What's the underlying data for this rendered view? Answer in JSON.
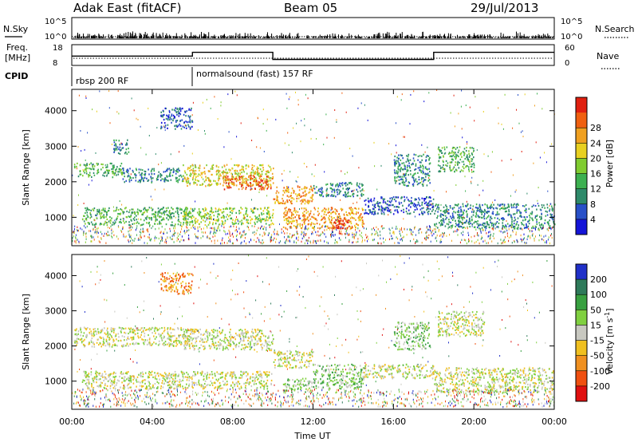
{
  "header": {
    "station": "Adak East (fitACF)",
    "beam": "Beam 05",
    "date": "29/Jul/2013"
  },
  "top_panels": {
    "nsky_label": "N.Sky",
    "nsearch_label": "N.Search",
    "nsky_ticks": [
      "10^5",
      "10^0"
    ],
    "nsky_right_ticks": [
      "10^5",
      "10^0"
    ],
    "freq_label": "Freq.",
    "freq_unit": "[MHz]",
    "freq_ticks": [
      "18",
      "8"
    ],
    "nave_label": "Nave",
    "nave_ticks": [
      "60",
      "0"
    ],
    "cpid_label": "CPID",
    "cpid_segments": [
      {
        "label": "rbsp 200 RF",
        "start_hour": 0,
        "end_hour": 6
      },
      {
        "label": "normalsound (fast) 157 RF",
        "start_hour": 6,
        "end_hour": 24
      }
    ]
  },
  "chart_data": [
    {
      "type": "heatmap",
      "name": "power",
      "ylabel": "Slant Range [km]",
      "yticks": [
        1000,
        2000,
        3000,
        4000
      ],
      "ylim": [
        200,
        4600
      ],
      "xlim": [
        0,
        24
      ],
      "colorbar": {
        "label": "Power [dB]",
        "ticks": [
          "4",
          "8",
          "12",
          "16",
          "20",
          "24",
          "28"
        ],
        "colors": [
          "#1414d8",
          "#2850c8",
          "#2e8a6a",
          "#3cb050",
          "#80cc30",
          "#e8d020",
          "#f0a020",
          "#f06010",
          "#e02010"
        ]
      },
      "echo_regions": [
        {
          "t0": 0.1,
          "t1": 2.5,
          "r0": 2150,
          "r1": 2550,
          "level": 3
        },
        {
          "t0": 2.5,
          "t1": 5.5,
          "r0": 2000,
          "r1": 2400,
          "level": 2
        },
        {
          "t0": 5.5,
          "t1": 10,
          "r0": 1900,
          "r1": 2500,
          "level": 5
        },
        {
          "t0": 7.5,
          "t1": 10,
          "r0": 1800,
          "r1": 2200,
          "level": 7
        },
        {
          "t0": 10,
          "t1": 12,
          "r0": 1400,
          "r1": 1900,
          "level": 6
        },
        {
          "t0": 12,
          "t1": 14.5,
          "r0": 1600,
          "r1": 2000,
          "level": 2
        },
        {
          "t0": 0.5,
          "t1": 6,
          "r0": 800,
          "r1": 1300,
          "level": 3
        },
        {
          "t0": 5.5,
          "t1": 10,
          "r0": 800,
          "r1": 1300,
          "level": 4
        },
        {
          "t0": 10.5,
          "t1": 14.5,
          "r0": 700,
          "r1": 1300,
          "level": 6
        },
        {
          "t0": 12.8,
          "t1": 13.8,
          "r0": 700,
          "r1": 1000,
          "level": 8
        },
        {
          "t0": 14.5,
          "t1": 18,
          "r0": 1100,
          "r1": 1600,
          "level": 1
        },
        {
          "t0": 18,
          "t1": 24,
          "r0": 700,
          "r1": 1400,
          "level": 2
        },
        {
          "t0": 18.2,
          "t1": 20,
          "r0": 2300,
          "r1": 3000,
          "level": 3
        },
        {
          "t0": 16,
          "t1": 17.8,
          "r0": 1900,
          "r1": 2800,
          "level": 2
        },
        {
          "t0": 4.4,
          "t1": 6,
          "r0": 3500,
          "r1": 4100,
          "level": 1
        },
        {
          "t0": 2,
          "t1": 2.8,
          "r0": 2800,
          "r1": 3200,
          "level": 2
        }
      ]
    },
    {
      "type": "heatmap",
      "name": "velocity",
      "ylabel": "Slant Range [km]",
      "xlabel": "Time UT",
      "xticks": [
        "00:00",
        "04:00",
        "08:00",
        "12:00",
        "16:00",
        "20:00",
        "00:00"
      ],
      "yticks": [
        1000,
        2000,
        3000,
        4000
      ],
      "ylim": [
        200,
        4600
      ],
      "xlim": [
        0,
        24
      ],
      "colorbar": {
        "label": "Velocity [m s",
        "label_sup": "-1",
        "label_end": "]",
        "ticks": [
          "200",
          "100",
          "50",
          "15",
          "-15",
          "-50",
          "-100",
          "-200"
        ],
        "colors": [
          "#2030c8",
          "#2e7a5a",
          "#38a040",
          "#80d040",
          "#c8c8c0",
          "#f0c020",
          "#f09020",
          "#f05010",
          "#e01010"
        ]
      },
      "echo_regions": [
        {
          "t0": 0.1,
          "t1": 6,
          "r0": 2000,
          "r1": 2550,
          "level": 4
        },
        {
          "t0": 5.5,
          "t1": 10,
          "r0": 1900,
          "r1": 2500,
          "level": 4
        },
        {
          "t0": 10,
          "t1": 12,
          "r0": 1400,
          "r1": 1900,
          "level": 4
        },
        {
          "t0": 0.5,
          "t1": 10,
          "r0": 800,
          "r1": 1300,
          "level": 4
        },
        {
          "t0": 12,
          "t1": 14.5,
          "r0": 800,
          "r1": 1500,
          "level": 3
        },
        {
          "t0": 10.5,
          "t1": 12,
          "r0": 700,
          "r1": 1100,
          "level": 3
        },
        {
          "t0": 14.5,
          "t1": 18,
          "r0": 1100,
          "r1": 1500,
          "level": 4
        },
        {
          "t0": 18,
          "t1": 24,
          "r0": 700,
          "r1": 1400,
          "level": 4
        },
        {
          "t0": 18.2,
          "t1": 20.5,
          "r0": 2300,
          "r1": 3000,
          "level": 4
        },
        {
          "t0": 16,
          "t1": 17.8,
          "r0": 1900,
          "r1": 2700,
          "level": 3
        },
        {
          "t0": 4.4,
          "t1": 6,
          "r0": 3500,
          "r1": 4100,
          "level": 6
        }
      ]
    }
  ]
}
